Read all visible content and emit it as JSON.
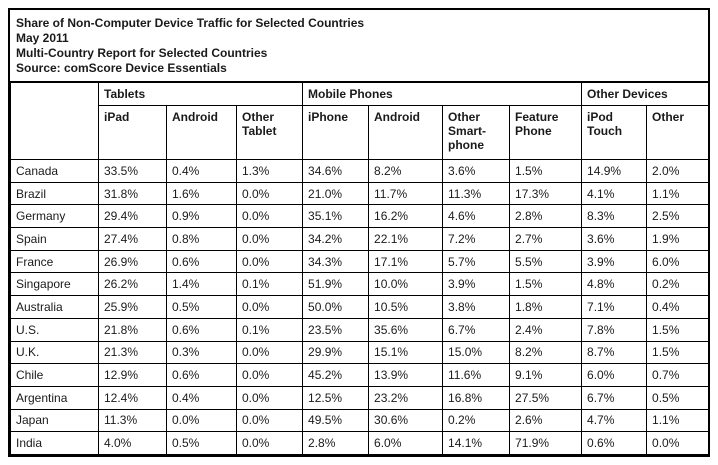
{
  "title_block": {
    "line1": "Share of Non-Computer Device Traffic for Selected Countries",
    "line2": "May 2011",
    "line3": "Multi-Country Report for Selected Countries",
    "line4": "Source: comScore Device Essentials"
  },
  "table": {
    "group_headers": [
      {
        "label": "Tablets",
        "colspan": 3
      },
      {
        "label": "Mobile Phones",
        "colspan": 4
      },
      {
        "label": "Other Devices",
        "colspan": 2
      }
    ],
    "column_headers": [
      "iPad",
      "Android",
      "Other Tablet",
      "iPhone",
      "Android",
      "Other Smart-phone",
      "Feature Phone",
      "iPod Touch",
      "Other"
    ],
    "rows": [
      {
        "country": "Canada",
        "values": [
          "33.5%",
          "0.4%",
          "1.3%",
          "34.6%",
          "8.2%",
          "3.6%",
          "1.5%",
          "14.9%",
          "2.0%"
        ]
      },
      {
        "country": "Brazil",
        "values": [
          "31.8%",
          "1.6%",
          "0.0%",
          "21.0%",
          "11.7%",
          "11.3%",
          "17.3%",
          "4.1%",
          "1.1%"
        ]
      },
      {
        "country": "Germany",
        "values": [
          "29.4%",
          "0.9%",
          "0.0%",
          "35.1%",
          "16.2%",
          "4.6%",
          "2.8%",
          "8.3%",
          "2.5%"
        ]
      },
      {
        "country": "Spain",
        "values": [
          "27.4%",
          "0.8%",
          "0.0%",
          "34.2%",
          "22.1%",
          "7.2%",
          "2.7%",
          "3.6%",
          "1.9%"
        ]
      },
      {
        "country": "France",
        "values": [
          "26.9%",
          "0.6%",
          "0.0%",
          "34.3%",
          "17.1%",
          "5.7%",
          "5.5%",
          "3.9%",
          "6.0%"
        ]
      },
      {
        "country": "Singapore",
        "values": [
          "26.2%",
          "1.4%",
          "0.1%",
          "51.9%",
          "10.0%",
          "3.9%",
          "1.5%",
          "4.8%",
          "0.2%"
        ]
      },
      {
        "country": "Australia",
        "values": [
          "25.9%",
          "0.5%",
          "0.0%",
          "50.0%",
          "10.5%",
          "3.8%",
          "1.8%",
          "7.1%",
          "0.4%"
        ]
      },
      {
        "country": "U.S.",
        "values": [
          "21.8%",
          "0.6%",
          "0.1%",
          "23.5%",
          "35.6%",
          "6.7%",
          "2.4%",
          "7.8%",
          "1.5%"
        ]
      },
      {
        "country": "U.K.",
        "values": [
          "21.3%",
          "0.3%",
          "0.0%",
          "29.9%",
          "15.1%",
          "15.0%",
          "8.2%",
          "8.7%",
          "1.5%"
        ]
      },
      {
        "country": "Chile",
        "values": [
          "12.9%",
          "0.6%",
          "0.0%",
          "45.2%",
          "13.9%",
          "11.6%",
          "9.1%",
          "6.0%",
          "0.7%"
        ]
      },
      {
        "country": "Argentina",
        "values": [
          "12.4%",
          "0.4%",
          "0.0%",
          "12.5%",
          "23.2%",
          "16.8%",
          "27.5%",
          "6.7%",
          "0.5%"
        ]
      },
      {
        "country": "Japan",
        "values": [
          "11.3%",
          "0.0%",
          "0.0%",
          "49.5%",
          "30.6%",
          "0.2%",
          "2.6%",
          "4.7%",
          "1.1%"
        ]
      },
      {
        "country": "India",
        "values": [
          "4.0%",
          "0.5%",
          "0.0%",
          "2.8%",
          "6.0%",
          "14.1%",
          "71.9%",
          "0.6%",
          "0.0%"
        ]
      }
    ]
  },
  "chart_data": {
    "type": "table",
    "title": "Share of Non-Computer Device Traffic for Selected Countries",
    "subtitle": "May 2011",
    "report": "Multi-Country Report for Selected Countries",
    "source": "comScore Device Essentials",
    "unit": "percent",
    "column_groups": {
      "Tablets": [
        "iPad",
        "Android",
        "Other Tablet"
      ],
      "Mobile Phones": [
        "iPhone",
        "Android",
        "Other Smart-phone",
        "Feature Phone"
      ],
      "Other Devices": [
        "iPod Touch",
        "Other"
      ]
    },
    "columns": [
      "iPad",
      "Android (Tablet)",
      "Other Tablet",
      "iPhone",
      "Android (Phone)",
      "Other Smart-phone",
      "Feature Phone",
      "iPod Touch",
      "Other"
    ],
    "rows": [
      {
        "country": "Canada",
        "values": [
          33.5,
          0.4,
          1.3,
          34.6,
          8.2,
          3.6,
          1.5,
          14.9,
          2.0
        ]
      },
      {
        "country": "Brazil",
        "values": [
          31.8,
          1.6,
          0.0,
          21.0,
          11.7,
          11.3,
          17.3,
          4.1,
          1.1
        ]
      },
      {
        "country": "Germany",
        "values": [
          29.4,
          0.9,
          0.0,
          35.1,
          16.2,
          4.6,
          2.8,
          8.3,
          2.5
        ]
      },
      {
        "country": "Spain",
        "values": [
          27.4,
          0.8,
          0.0,
          34.2,
          22.1,
          7.2,
          2.7,
          3.6,
          1.9
        ]
      },
      {
        "country": "France",
        "values": [
          26.9,
          0.6,
          0.0,
          34.3,
          17.1,
          5.7,
          5.5,
          3.9,
          6.0
        ]
      },
      {
        "country": "Singapore",
        "values": [
          26.2,
          1.4,
          0.1,
          51.9,
          10.0,
          3.9,
          1.5,
          4.8,
          0.2
        ]
      },
      {
        "country": "Australia",
        "values": [
          25.9,
          0.5,
          0.0,
          50.0,
          10.5,
          3.8,
          1.8,
          7.1,
          0.4
        ]
      },
      {
        "country": "U.S.",
        "values": [
          21.8,
          0.6,
          0.1,
          23.5,
          35.6,
          6.7,
          2.4,
          7.8,
          1.5
        ]
      },
      {
        "country": "U.K.",
        "values": [
          21.3,
          0.3,
          0.0,
          29.9,
          15.1,
          15.0,
          8.2,
          8.7,
          1.5
        ]
      },
      {
        "country": "Chile",
        "values": [
          12.9,
          0.6,
          0.0,
          45.2,
          13.9,
          11.6,
          9.1,
          6.0,
          0.7
        ]
      },
      {
        "country": "Argentina",
        "values": [
          12.4,
          0.4,
          0.0,
          12.5,
          23.2,
          16.8,
          27.5,
          6.7,
          0.5
        ]
      },
      {
        "country": "Japan",
        "values": [
          11.3,
          0.0,
          0.0,
          49.5,
          30.6,
          0.2,
          2.6,
          4.7,
          1.1
        ]
      },
      {
        "country": "India",
        "values": [
          4.0,
          0.5,
          0.0,
          2.8,
          6.0,
          14.1,
          71.9,
          0.6,
          0.0
        ]
      }
    ]
  },
  "colors": {
    "background": "#ffffff",
    "border": "#000000",
    "text": "#1a1a1a"
  }
}
